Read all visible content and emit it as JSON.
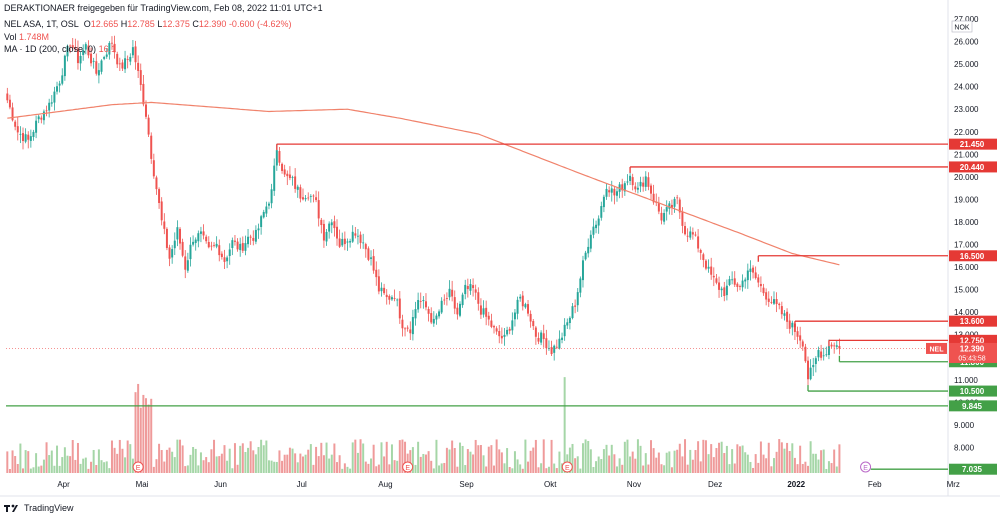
{
  "header": {
    "publisher": "DERAKTIONAER freigegeben für TradingView.com, Feb 08, 2022 11:01 UTC+1",
    "symbol_line": "NEL ASA, 1T, OSL",
    "ohlc": {
      "o_label": "O",
      "o": "12.665",
      "h_label": "H",
      "h": "12.785",
      "l_label": "L",
      "l": "12.375",
      "c_label": "C",
      "c": "12.390",
      "change": "-0.600 (-4.62%)"
    },
    "vol_line": "Vol",
    "vol_value": "1.748M",
    "ma_line": "MA · 1D (200, close, 0)",
    "ma_value": "16.1"
  },
  "footer": {
    "brand": "TradingView"
  },
  "colors": {
    "up": "#26a69a",
    "down": "#ef5350",
    "ma": "#f0826b",
    "resistance": "#e53935",
    "support": "#43a047",
    "vol_up": "#a5d6a7",
    "vol_down": "#ef9a9a",
    "axis_text": "#131722",
    "grid": "#f0f3fa"
  },
  "chart_data": {
    "type": "candlestick",
    "title": "NEL ASA, 1T, OSL",
    "currency_label": "NOK",
    "y_axis": {
      "min": 7.0,
      "max": 27.0,
      "ticks": [
        "27.000",
        "26.000",
        "25.000",
        "24.000",
        "23.000",
        "22.000",
        "21.000",
        "20.000",
        "19.000",
        "18.000",
        "17.000",
        "16.000",
        "15.000",
        "14.000",
        "13.000",
        "12.000",
        "11.000",
        "10.000",
        "9.000",
        "8.000",
        "7.000"
      ]
    },
    "x_axis": {
      "labels": [
        "Apr",
        "Mai",
        "Jun",
        "Jul",
        "Aug",
        "Sep",
        "Okt",
        "Nov",
        "Dez",
        "2022",
        "Feb",
        "Mrz"
      ]
    },
    "resistance_levels": [
      {
        "value": 21.45,
        "label": "21.450"
      },
      {
        "value": 20.44,
        "label": "20.440"
      },
      {
        "value": 16.5,
        "label": "16.500"
      },
      {
        "value": 13.6,
        "label": "13.600"
      },
      {
        "value": 12.75,
        "label": "12.750"
      }
    ],
    "support_levels": [
      {
        "value": 11.8,
        "label": "11.800"
      },
      {
        "value": 10.5,
        "label": "10.500"
      },
      {
        "value": 9.845,
        "label": "9.845"
      },
      {
        "value": 7.035,
        "label": "7.035"
      }
    ],
    "last_price": {
      "ticker": "NEL",
      "value": 12.39,
      "label": "12.390",
      "countdown": "05:43:58"
    },
    "price_anchors": [
      [
        0,
        23.4
      ],
      [
        4,
        22.0
      ],
      [
        8,
        21.6
      ],
      [
        12,
        22.6
      ],
      [
        16,
        23.2
      ],
      [
        20,
        24.3
      ],
      [
        24,
        26.0
      ],
      [
        27,
        25.2
      ],
      [
        30,
        25.8
      ],
      [
        34,
        24.6
      ],
      [
        37,
        25.4
      ],
      [
        40,
        26.0
      ],
      [
        43,
        24.8
      ],
      [
        46,
        25.2
      ],
      [
        48,
        25.7
      ],
      [
        51,
        24.0
      ],
      [
        53,
        22.8
      ],
      [
        55,
        21.0
      ],
      [
        57,
        19.5
      ],
      [
        59,
        18.0
      ],
      [
        62,
        16.4
      ],
      [
        65,
        17.6
      ],
      [
        68,
        16.0
      ],
      [
        71,
        17.3
      ],
      [
        74,
        17.4
      ],
      [
        77,
        16.7
      ],
      [
        80,
        17.0
      ],
      [
        83,
        16.3
      ],
      [
        86,
        17.1
      ],
      [
        89,
        16.8
      ],
      [
        92,
        17.3
      ],
      [
        95,
        17.4
      ],
      [
        98,
        18.4
      ],
      [
        101,
        19.3
      ],
      [
        103,
        21.3
      ],
      [
        106,
        20.0
      ],
      [
        109,
        19.8
      ],
      [
        112,
        19.2
      ],
      [
        115,
        19.3
      ],
      [
        118,
        18.8
      ],
      [
        121,
        17.4
      ],
      [
        124,
        18.2
      ],
      [
        127,
        17.0
      ],
      [
        130,
        17.3
      ],
      [
        133,
        17.6
      ],
      [
        136,
        17.1
      ],
      [
        139,
        16.3
      ],
      [
        142,
        15.0
      ],
      [
        145,
        14.6
      ],
      [
        148,
        14.8
      ],
      [
        151,
        13.5
      ],
      [
        154,
        13.3
      ],
      [
        157,
        14.6
      ],
      [
        160,
        14.2
      ],
      [
        163,
        13.5
      ],
      [
        166,
        14.3
      ],
      [
        169,
        14.8
      ],
      [
        172,
        13.9
      ],
      [
        175,
        15.0
      ],
      [
        178,
        15.0
      ],
      [
        181,
        14.1
      ],
      [
        184,
        13.6
      ],
      [
        187,
        13.0
      ],
      [
        190,
        12.8
      ],
      [
        193,
        13.7
      ],
      [
        196,
        14.6
      ],
      [
        199,
        14.1
      ],
      [
        202,
        13.0
      ],
      [
        205,
        12.8
      ],
      [
        208,
        12.3
      ],
      [
        211,
        12.7
      ],
      [
        214,
        13.5
      ],
      [
        217,
        14.4
      ],
      [
        220,
        16.1
      ],
      [
        223,
        17.6
      ],
      [
        226,
        18.2
      ],
      [
        229,
        19.7
      ],
      [
        232,
        19.2
      ],
      [
        235,
        19.6
      ],
      [
        238,
        20.1
      ],
      [
        241,
        19.4
      ],
      [
        244,
        20.0
      ],
      [
        247,
        19.0
      ],
      [
        250,
        18.2
      ],
      [
        253,
        18.6
      ],
      [
        256,
        18.9
      ],
      [
        259,
        17.6
      ],
      [
        262,
        17.4
      ],
      [
        265,
        16.7
      ],
      [
        268,
        15.8
      ],
      [
        271,
        15.2
      ],
      [
        274,
        14.9
      ],
      [
        277,
        15.4
      ],
      [
        280,
        15.1
      ],
      [
        283,
        15.9
      ],
      [
        286,
        15.5
      ],
      [
        289,
        14.9
      ],
      [
        292,
        14.5
      ],
      [
        295,
        14.1
      ],
      [
        298,
        13.6
      ],
      [
        301,
        13.2
      ],
      [
        304,
        12.7
      ],
      [
        306,
        11.1
      ],
      [
        308,
        11.5
      ],
      [
        310,
        12.3
      ],
      [
        312,
        12.1
      ],
      [
        314,
        12.5
      ],
      [
        316,
        12.65
      ],
      [
        318,
        12.39
      ]
    ],
    "ma_anchors": [
      [
        0,
        22.6
      ],
      [
        40,
        23.2
      ],
      [
        55,
        23.3
      ],
      [
        100,
        22.9
      ],
      [
        130,
        23.0
      ],
      [
        150,
        22.6
      ],
      [
        180,
        21.9
      ],
      [
        200,
        21.0
      ],
      [
        220,
        20.1
      ],
      [
        250,
        18.8
      ],
      [
        280,
        17.5
      ],
      [
        300,
        16.6
      ],
      [
        318,
        16.1
      ]
    ],
    "volume": {
      "label": "Vol",
      "last": "1.748M"
    },
    "earnings_markers": [
      {
        "bar": 50,
        "label": "E"
      },
      {
        "bar": 153,
        "label": "E"
      },
      {
        "bar": 214,
        "label": "E"
      },
      {
        "bar": 328,
        "label": "E"
      }
    ],
    "bars_total": 360
  }
}
